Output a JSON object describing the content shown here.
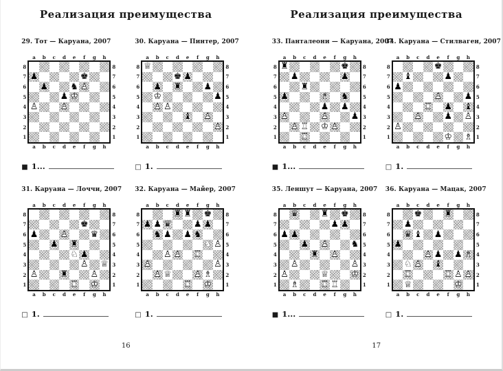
{
  "pages": [
    {
      "title": "Реализация преимущества",
      "page_number": "16",
      "diagrams": [
        {
          "caption": "29. Тот — Каруана, 2007",
          "marker": "■",
          "move_label": "1...",
          "pieces": {
            "a7": "bP",
            "f7": "bK",
            "b6": "bP",
            "e6": "bN",
            "f6": "wP",
            "d5": "bP",
            "e5": "wK",
            "a4": "wP",
            "d4": "wP"
          }
        },
        {
          "caption": "30. Каруана — Пинтер, 2007",
          "marker": "□",
          "move_label": "1.",
          "pieces": {
            "a8": "wQ",
            "d7": "bK",
            "e7": "bP",
            "b6": "bP",
            "d6": "bR",
            "g6": "bP",
            "b5": "wK",
            "h5": "bP",
            "b4": "wP",
            "c4": "wP",
            "e3": "bB",
            "g3": "wP",
            "h2": "wP"
          }
        },
        {
          "caption": "31. Каруана — Лоччи, 2007",
          "marker": "□",
          "move_label": "1.",
          "pieces": {
            "f7": "bK",
            "a6": "bP",
            "d6": "wP",
            "g6": "bQ",
            "c5": "bP",
            "e5": "bR",
            "e4": "wN",
            "f4": "bP",
            "f3": "wP",
            "h3": "wQ",
            "a2": "wP",
            "d2": "bR",
            "g2": "wP",
            "e1": "wR",
            "g1": "wK"
          }
        },
        {
          "caption": "32. Каруана — Майер, 2007",
          "marker": "□",
          "move_label": "1.",
          "pieces": {
            "d8": "bR",
            "e8": "bR",
            "g8": "bK",
            "a7": "bP",
            "b7": "bP",
            "c7": "bQ",
            "f7": "bP",
            "g7": "bP",
            "b6": "bN",
            "c6": "bP",
            "e6": "bP",
            "f6": "bN",
            "g5": "wN",
            "h5": "wP",
            "c4": "wP",
            "d4": "wP",
            "f4": "wR",
            "a3": "wP",
            "h3": "wP",
            "b2": "wP",
            "c2": "wQ",
            "f2": "wP",
            "g2": "wB",
            "e1": "wR",
            "g1": "wK"
          }
        }
      ]
    },
    {
      "title": "Реализация преимущества",
      "page_number": "17",
      "diagrams": [
        {
          "caption": "33. Панталеони — Каруана, 2007",
          "marker": "■",
          "move_label": "1...",
          "pieces": {
            "a8": "bR",
            "g8": "bK",
            "b7": "bP",
            "g7": "bP",
            "c6": "bR",
            "a5": "bP",
            "e5": "wB",
            "g5": "bN",
            "e4": "bP",
            "g4": "bP",
            "a3": "wP",
            "e3": "wP",
            "h3": "bP",
            "b2": "wP",
            "c2": "wR",
            "e2": "wK",
            "f2": "wP",
            "c1": "wR"
          }
        },
        {
          "caption": "34. Каруана — Стилваген, 2007",
          "marker": "□",
          "move_label": "1.",
          "pieces": {
            "e8": "bK",
            "b7": "bB",
            "f7": "bP",
            "a6": "bP",
            "e5": "wP",
            "h5": "bP",
            "d4": "wR",
            "f4": "bP",
            "h4": "bB",
            "c3": "wP",
            "f3": "bP",
            "h3": "wP",
            "a2": "wP",
            "f1": "wK",
            "h1": "wB"
          }
        },
        {
          "caption": "35. Леншут — Каруана, 2007",
          "marker": "■",
          "move_label": "1...",
          "pieces": {
            "b8": "bQ",
            "e8": "bR",
            "g8": "bK",
            "f7": "bP",
            "g7": "bP",
            "a6": "bP",
            "b6": "bP",
            "c5": "bP",
            "e5": "wP",
            "h5": "bN",
            "d4": "bR",
            "f4": "wP",
            "b3": "wP",
            "h3": "wP",
            "a2": "wP",
            "e2": "wQ",
            "h2": "wK",
            "b1": "wB",
            "e1": "wR",
            "f1": "wR"
          }
        },
        {
          "caption": "36. Каруана — Мацак, 2007",
          "marker": "□",
          "move_label": "1.",
          "pieces": {
            "c8": "bK",
            "f8": "bR",
            "b7": "bP",
            "b6": "bQ",
            "c6": "bB",
            "e6": "bP",
            "a5": "bP",
            "d4": "wP",
            "e4": "bP",
            "g4": "bP",
            "h4": "wB",
            "b3": "wN",
            "c3": "wP",
            "e3": "bB",
            "b2": "wR",
            "f2": "wR",
            "g2": "wP",
            "h2": "wP",
            "b1": "wQ",
            "g1": "wK"
          }
        }
      ]
    }
  ],
  "board": {
    "files": [
      "a",
      "b",
      "c",
      "d",
      "e",
      "f",
      "g",
      "h"
    ],
    "ranks": [
      "8",
      "7",
      "6",
      "5",
      "4",
      "3",
      "2",
      "1"
    ]
  },
  "glyphs": {
    "solid": {
      "K": "♚",
      "Q": "♛",
      "R": "♜",
      "B": "♝",
      "N": "♞",
      "P": "♟"
    },
    "outline": {
      "K": "♔",
      "Q": "♕",
      "R": "♖",
      "B": "♗",
      "N": "♘",
      "P": "♙"
    }
  },
  "colors": {
    "ink": "#1a1a1a",
    "hatch": "#9b9b9b",
    "paper": "#ffffff"
  }
}
